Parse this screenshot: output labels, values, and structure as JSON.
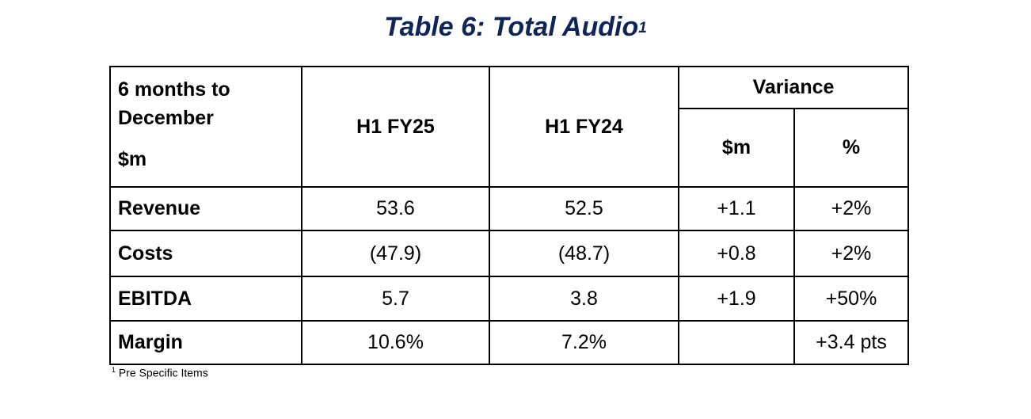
{
  "title": {
    "text": "Table 6:  Total Audio",
    "sup": "1"
  },
  "table": {
    "corner_line1": "6 months to",
    "corner_line2": "December",
    "corner_unit": "$m",
    "col_h1_fy25": "H1 FY25",
    "col_h1_fy24": "H1 FY24",
    "variance_header": "Variance",
    "variance_abs": "$m",
    "variance_pct": "%",
    "rows": [
      {
        "label": "Revenue",
        "fy25": "53.6",
        "fy24": "52.5",
        "var_abs": "+1.1",
        "var_pct": "+2%"
      },
      {
        "label": "Costs",
        "fy25": "(47.9)",
        "fy24": "(48.7)",
        "var_abs": "+0.8",
        "var_pct": "+2%"
      },
      {
        "label": "EBITDA",
        "fy25": "5.7",
        "fy24": "3.8",
        "var_abs": "+1.9",
        "var_pct": "+50%"
      },
      {
        "label": "Margin",
        "fy25": "10.6%",
        "fy24": "7.2%",
        "var_abs": "",
        "var_pct": "+3.4 pts"
      }
    ]
  },
  "footnote": {
    "marker": "1",
    "text": " Pre Specific Items"
  },
  "colors": {
    "title": "#0f2557",
    "border": "#000000"
  }
}
